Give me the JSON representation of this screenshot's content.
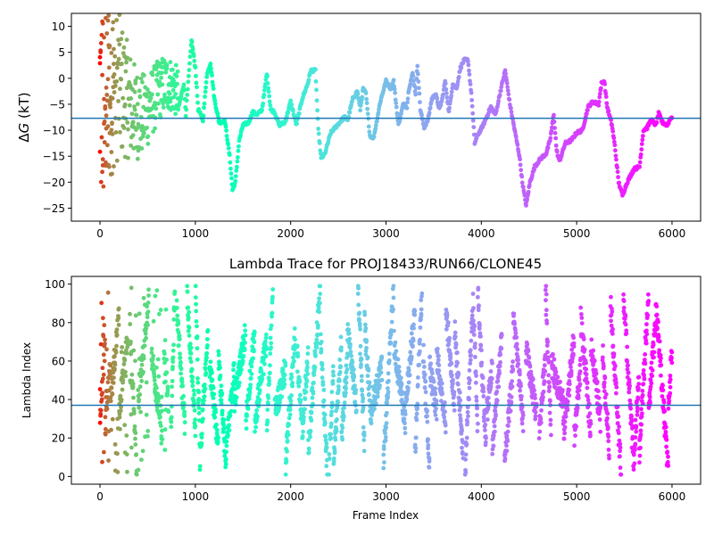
{
  "chart_data": [
    {
      "type": "scatter",
      "title": "",
      "xlabel": "",
      "ylabel_prefix": "Δ",
      "ylabel_var": "G",
      "ylabel_unit": " (kT)",
      "xlim": [
        -300,
        6300
      ],
      "ylim": [
        -27.5,
        12.5
      ],
      "xticks": [
        0,
        1000,
        2000,
        3000,
        4000,
        5000,
        6000
      ],
      "yticks": [
        -25,
        -20,
        -15,
        -10,
        -5,
        0,
        5,
        10
      ],
      "hline": -7.7,
      "hline_color": "#1f77b4",
      "colormap": "rainbow",
      "x_max_frame": 6000,
      "trace_keypoints": [
        [
          820,
          -6
        ],
        [
          880,
          -1
        ],
        [
          900,
          -7
        ],
        [
          960,
          7.5
        ],
        [
          1000,
          2
        ],
        [
          1030,
          -6
        ],
        [
          1080,
          -8
        ],
        [
          1120,
          0.5
        ],
        [
          1160,
          3
        ],
        [
          1200,
          -4
        ],
        [
          1250,
          -8.5
        ],
        [
          1310,
          -8.2
        ],
        [
          1360,
          -15
        ],
        [
          1390,
          -21.5
        ],
        [
          1420,
          -20
        ],
        [
          1460,
          -12
        ],
        [
          1500,
          -9
        ],
        [
          1560,
          -8.5
        ],
        [
          1600,
          -6.5
        ],
        [
          1650,
          -7
        ],
        [
          1700,
          -6
        ],
        [
          1750,
          1
        ],
        [
          1790,
          -6
        ],
        [
          1830,
          -6.5
        ],
        [
          1880,
          -9
        ],
        [
          1940,
          -8.5
        ],
        [
          2000,
          -4.5
        ],
        [
          2060,
          -9
        ],
        [
          2120,
          -4
        ],
        [
          2180,
          -1
        ],
        [
          2210,
          1.5
        ],
        [
          2260,
          1.5
        ],
        [
          2290,
          -10
        ],
        [
          2320,
          -15.5
        ],
        [
          2360,
          -14.5
        ],
        [
          2420,
          -10.5
        ],
        [
          2490,
          -9
        ],
        [
          2560,
          -7.5
        ],
        [
          2600,
          -8
        ],
        [
          2650,
          -4
        ],
        [
          2700,
          -2.5
        ],
        [
          2730,
          -6
        ],
        [
          2760,
          -2
        ],
        [
          2790,
          -3
        ],
        [
          2830,
          -11
        ],
        [
          2870,
          -11.5
        ],
        [
          2900,
          -8.5
        ],
        [
          2940,
          -4.5
        ],
        [
          3000,
          -0.5
        ],
        [
          3050,
          -2
        ],
        [
          3080,
          -0.5
        ],
        [
          3130,
          -9
        ],
        [
          3180,
          -5
        ],
        [
          3220,
          -5.5
        ],
        [
          3240,
          -2
        ],
        [
          3280,
          1
        ],
        [
          3310,
          -3
        ],
        [
          3330,
          2.5
        ],
        [
          3360,
          -6
        ],
        [
          3400,
          -9.5
        ],
        [
          3440,
          -8
        ],
        [
          3480,
          -4
        ],
        [
          3520,
          -3
        ],
        [
          3560,
          -6
        ],
        [
          3590,
          -4
        ],
        [
          3620,
          -0.5
        ],
        [
          3660,
          -6.5
        ],
        [
          3700,
          -1
        ],
        [
          3740,
          -2
        ],
        [
          3780,
          2
        ],
        [
          3820,
          3.5
        ],
        [
          3860,
          3.5
        ],
        [
          3900,
          -4
        ],
        [
          3930,
          -12.5
        ],
        [
          3960,
          -11
        ],
        [
          4020,
          -9
        ],
        [
          4100,
          -5.5
        ],
        [
          4150,
          -7
        ],
        [
          4200,
          -2.5
        ],
        [
          4250,
          1.5
        ],
        [
          4300,
          -5
        ],
        [
          4360,
          -11
        ],
        [
          4400,
          -15
        ],
        [
          4430,
          -20
        ],
        [
          4470,
          -24.5
        ],
        [
          4510,
          -20
        ],
        [
          4560,
          -17
        ],
        [
          4620,
          -15.5
        ],
        [
          4680,
          -14.5
        ],
        [
          4720,
          -12
        ],
        [
          4760,
          -7
        ],
        [
          4790,
          -14
        ],
        [
          4820,
          -16
        ],
        [
          4880,
          -12.5
        ],
        [
          4940,
          -12
        ],
        [
          5000,
          -10.5
        ],
        [
          5060,
          -10
        ],
        [
          5120,
          -5.5
        ],
        [
          5170,
          -4.5
        ],
        [
          5230,
          -5
        ],
        [
          5260,
          -1
        ],
        [
          5290,
          -0.5
        ],
        [
          5320,
          -5.5
        ],
        [
          5370,
          -9
        ],
        [
          5400,
          -13
        ],
        [
          5440,
          -20
        ],
        [
          5480,
          -22.5
        ],
        [
          5530,
          -20
        ],
        [
          5600,
          -17.5
        ],
        [
          5660,
          -17
        ],
        [
          5700,
          -10
        ],
        [
          5740,
          -9.5
        ],
        [
          5780,
          -8
        ],
        [
          5830,
          -9
        ],
        [
          5860,
          -6.8
        ],
        [
          5900,
          -8.5
        ],
        [
          5950,
          -9
        ],
        [
          5990,
          -7.5
        ]
      ]
    },
    {
      "type": "scatter",
      "title": "Lambda Trace for PROJ18433/RUN66/CLONE45",
      "xlabel": "Frame Index",
      "ylabel": "Lambda Index",
      "xlim": [
        -300,
        6300
      ],
      "ylim": [
        -4,
        104
      ],
      "xticks": [
        0,
        1000,
        2000,
        3000,
        4000,
        5000,
        6000
      ],
      "yticks": [
        0,
        20,
        40,
        60,
        80,
        100
      ],
      "hline": 37,
      "hline_color": "#1f77b4",
      "colormap": "rainbow",
      "x_max_frame": 6000
    }
  ]
}
